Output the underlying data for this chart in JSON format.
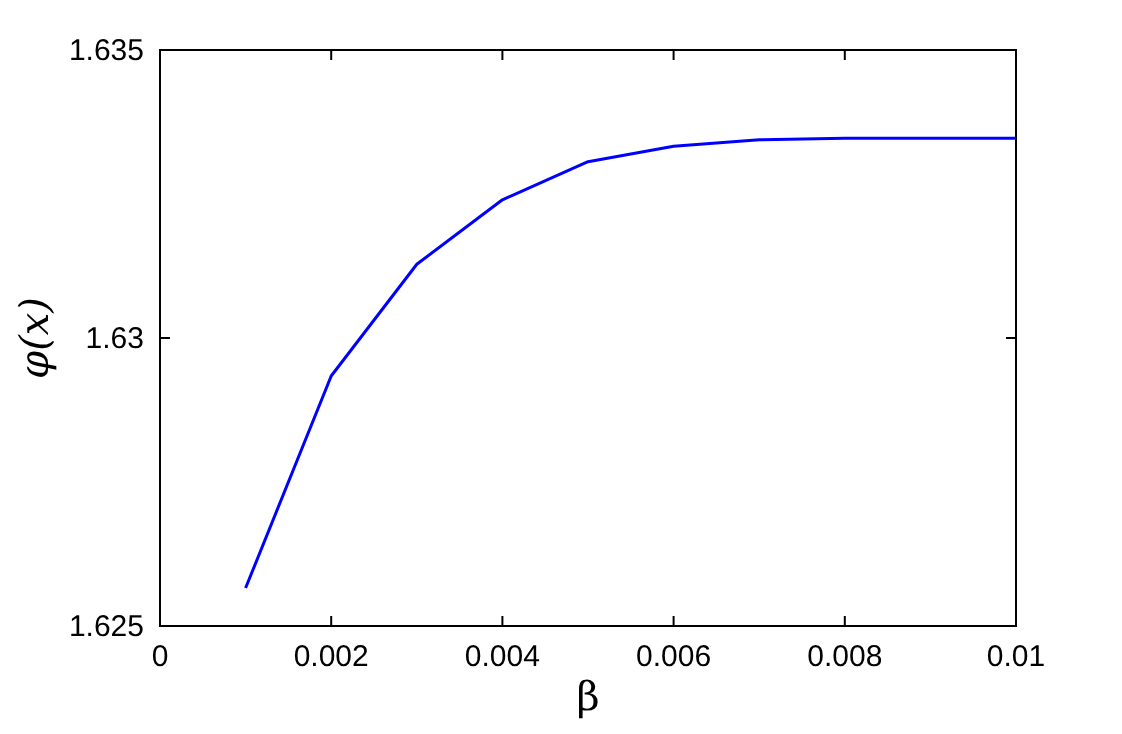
{
  "chart_data": {
    "type": "line",
    "xlabel": "β",
    "ylabel": "φ(x)",
    "x": [
      0.001,
      0.002,
      0.003,
      0.004,
      0.005,
      0.006,
      0.007,
      0.008,
      0.009,
      0.01
    ],
    "series": [
      {
        "color": "#0000ff",
        "values": [
          1.62566,
          1.62934,
          1.63128,
          1.6324,
          1.63306,
          1.63333,
          1.63344,
          1.63347,
          1.63347,
          1.63347
        ]
      }
    ],
    "xlim": [
      0,
      0.01
    ],
    "xticks": [
      0,
      0.002,
      0.004,
      0.006,
      0.008,
      0.01
    ],
    "ylim": [
      1.625,
      1.635
    ],
    "yticks": [
      1.625,
      1.63,
      1.635
    ],
    "grid": false,
    "marker": "none",
    "line_style": "solid"
  }
}
